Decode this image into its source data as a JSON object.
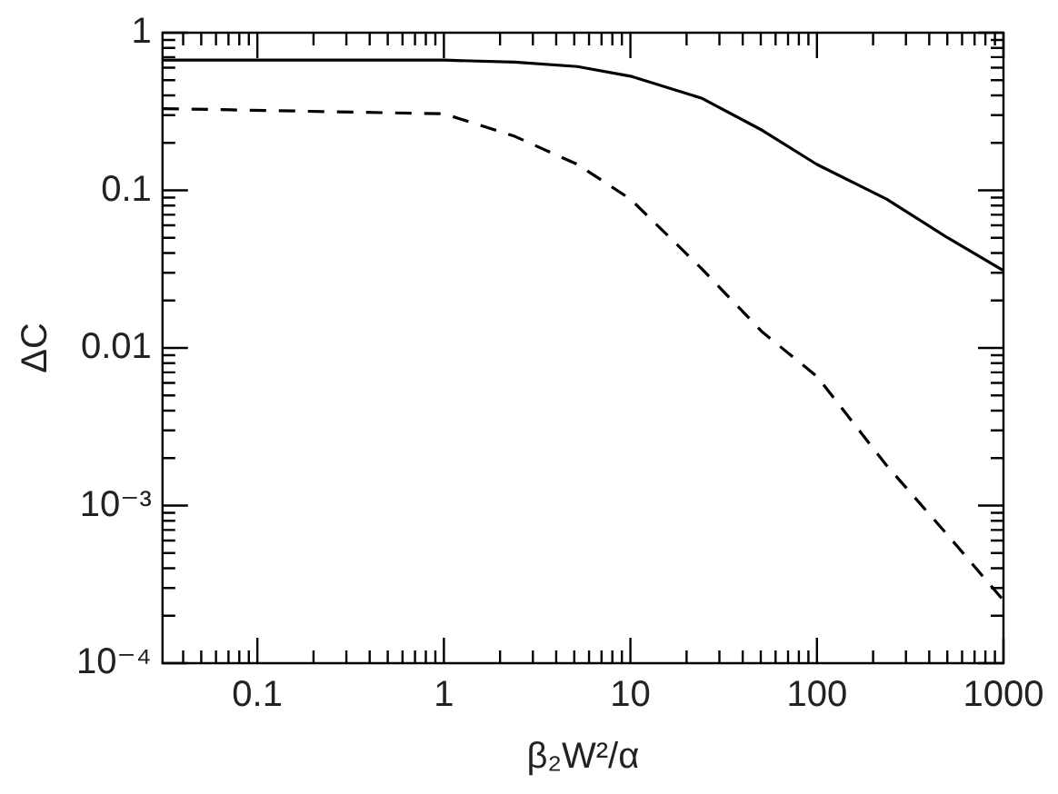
{
  "chart_data": {
    "type": "line",
    "xlabel": "β₂W²/α",
    "ylabel": "ΔC",
    "log": "xy",
    "grid": false,
    "legend": false,
    "marker": "none",
    "xlim": [
      0.031,
      1000
    ],
    "ylim": [
      0.0001,
      1
    ],
    "xticks": [
      0.1,
      1,
      10,
      100,
      1000
    ],
    "yticks": [
      {
        "value": 0.0001,
        "label": "10⁻⁴"
      },
      {
        "value": 0.001,
        "label": "10⁻³"
      },
      0.01,
      0.1,
      1
    ],
    "series": [
      {
        "color": "#000000",
        "line_style": "solid",
        "x": [
          0.031,
          1,
          2.4,
          5.2,
          10,
          24,
          51,
          100,
          236,
          502,
          1000
        ],
        "values": [
          0.67,
          0.67,
          0.65,
          0.61,
          0.53,
          0.385,
          0.24,
          0.146,
          0.088,
          0.05,
          0.031
        ]
      },
      {
        "color": "#000000",
        "line_style": "dashed",
        "x": [
          0.031,
          1,
          2.4,
          5.2,
          10,
          24,
          51,
          100,
          236,
          502,
          1000
        ],
        "values": [
          0.33,
          0.306,
          0.22,
          0.146,
          0.088,
          0.032,
          0.0126,
          0.0066,
          0.0018,
          0.00065,
          0.00025
        ]
      }
    ]
  }
}
